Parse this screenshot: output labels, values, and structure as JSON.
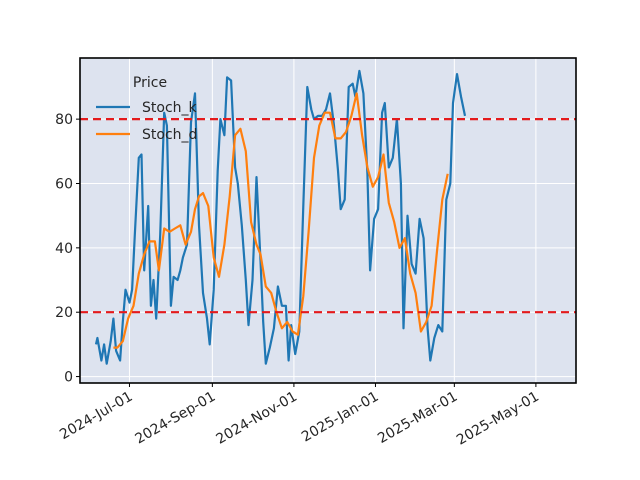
{
  "chart_data": {
    "type": "line",
    "title": "",
    "xlabel": "",
    "ylabel": "",
    "legend": {
      "title": "Price",
      "placement": "top-left"
    },
    "x_ticks": [
      "2024-Jul-01",
      "2024-Sep-01",
      "2024-Nov-01",
      "2025-Jan-01",
      "2025-Mar-01",
      "2025-May-01"
    ],
    "x_range": [
      "2024-05-25",
      "2025-05-31"
    ],
    "ylim": [
      -2,
      99
    ],
    "y_ticks": [
      0,
      20,
      40,
      60,
      80
    ],
    "grid": true,
    "background": "#dde3ef",
    "reference_lines": [
      {
        "y": 80,
        "color": "#e41a1c",
        "style": "dashed"
      },
      {
        "y": 20,
        "color": "#e41a1c",
        "style": "dashed"
      }
    ],
    "series": [
      {
        "name": "Stoch_k",
        "color": "#1f77b4",
        "points": [
          [
            "2024-06-06",
            10
          ],
          [
            "2024-06-07",
            12
          ],
          [
            "2024-06-10",
            5
          ],
          [
            "2024-06-12",
            10
          ],
          [
            "2024-06-14",
            4
          ],
          [
            "2024-06-17",
            11
          ],
          [
            "2024-06-19",
            18
          ],
          [
            "2024-06-21",
            8
          ],
          [
            "2024-06-24",
            5
          ],
          [
            "2024-06-26",
            17
          ],
          [
            "2024-06-28",
            27
          ],
          [
            "2024-07-01",
            23
          ],
          [
            "2024-07-03",
            27
          ],
          [
            "2024-07-05",
            44
          ],
          [
            "2024-07-08",
            68
          ],
          [
            "2024-07-10",
            69
          ],
          [
            "2024-07-12",
            33
          ],
          [
            "2024-07-15",
            53
          ],
          [
            "2024-07-17",
            22
          ],
          [
            "2024-07-19",
            30
          ],
          [
            "2024-07-21",
            18
          ],
          [
            "2024-07-24",
            44
          ],
          [
            "2024-07-27",
            82
          ],
          [
            "2024-07-29",
            78
          ],
          [
            "2024-08-01",
            22
          ],
          [
            "2024-08-03",
            31
          ],
          [
            "2024-08-06",
            30
          ],
          [
            "2024-08-08",
            33
          ],
          [
            "2024-08-10",
            37
          ],
          [
            "2024-08-13",
            41
          ],
          [
            "2024-08-16",
            79
          ],
          [
            "2024-08-19",
            88
          ],
          [
            "2024-08-22",
            47
          ],
          [
            "2024-08-25",
            26
          ],
          [
            "2024-08-28",
            18
          ],
          [
            "2024-08-30",
            10
          ],
          [
            "2024-09-02",
            27
          ],
          [
            "2024-09-05",
            64
          ],
          [
            "2024-09-07",
            80
          ],
          [
            "2024-09-10",
            75
          ],
          [
            "2024-09-12",
            93
          ],
          [
            "2024-09-15",
            92
          ],
          [
            "2024-09-18",
            65
          ],
          [
            "2024-09-20",
            60
          ],
          [
            "2024-09-23",
            47
          ],
          [
            "2024-09-26",
            30
          ],
          [
            "2024-09-28",
            16
          ],
          [
            "2024-10-01",
            30
          ],
          [
            "2024-10-04",
            62
          ],
          [
            "2024-10-07",
            36
          ],
          [
            "2024-10-09",
            17
          ],
          [
            "2024-10-11",
            4
          ],
          [
            "2024-10-14",
            9
          ],
          [
            "2024-10-17",
            15
          ],
          [
            "2024-10-20",
            28
          ],
          [
            "2024-10-23",
            22
          ],
          [
            "2024-10-26",
            22
          ],
          [
            "2024-10-28",
            5
          ],
          [
            "2024-10-30",
            16
          ],
          [
            "2024-11-02",
            7
          ],
          [
            "2024-11-05",
            14
          ],
          [
            "2024-11-08",
            53
          ],
          [
            "2024-11-11",
            90
          ],
          [
            "2024-11-14",
            83
          ],
          [
            "2024-11-16",
            80
          ],
          [
            "2024-11-19",
            81
          ],
          [
            "2024-11-22",
            81
          ],
          [
            "2024-11-25",
            83
          ],
          [
            "2024-11-28",
            88
          ],
          [
            "2024-12-01",
            78
          ],
          [
            "2024-12-04",
            64
          ],
          [
            "2024-12-06",
            52
          ],
          [
            "2024-12-09",
            55
          ],
          [
            "2024-12-12",
            90
          ],
          [
            "2024-12-15",
            91
          ],
          [
            "2024-12-17",
            87
          ],
          [
            "2024-12-20",
            95
          ],
          [
            "2024-12-23",
            88
          ],
          [
            "2024-12-26",
            63
          ],
          [
            "2024-12-28",
            33
          ],
          [
            "2024-12-31",
            49
          ],
          [
            "2025-01-03",
            52
          ],
          [
            "2025-01-06",
            82
          ],
          [
            "2025-01-08",
            85
          ],
          [
            "2025-01-11",
            65
          ],
          [
            "2025-01-14",
            68
          ],
          [
            "2025-01-17",
            80
          ],
          [
            "2025-01-20",
            60
          ],
          [
            "2025-01-22",
            15
          ],
          [
            "2025-01-25",
            50
          ],
          [
            "2025-01-28",
            35
          ],
          [
            "2025-01-31",
            32
          ],
          [
            "2025-02-03",
            49
          ],
          [
            "2025-02-06",
            43
          ],
          [
            "2025-02-09",
            15
          ],
          [
            "2025-02-11",
            5
          ],
          [
            "2025-02-14",
            12
          ],
          [
            "2025-02-17",
            16
          ],
          [
            "2025-02-20",
            14
          ],
          [
            "2025-02-23",
            55
          ],
          [
            "2025-02-26",
            60
          ],
          [
            "2025-02-28",
            85
          ],
          [
            "2025-03-03",
            94
          ],
          [
            "2025-03-06",
            87
          ],
          [
            "2025-03-09",
            81
          ]
        ]
      },
      {
        "name": "Stoch_d",
        "color": "#ff7f0e",
        "points": [
          [
            "2024-06-19",
            9
          ],
          [
            "2024-06-22",
            9
          ],
          [
            "2024-06-26",
            11
          ],
          [
            "2024-06-30",
            18
          ],
          [
            "2024-07-04",
            22
          ],
          [
            "2024-07-08",
            32
          ],
          [
            "2024-07-12",
            38
          ],
          [
            "2024-07-16",
            42
          ],
          [
            "2024-07-20",
            42
          ],
          [
            "2024-07-23",
            33
          ],
          [
            "2024-07-27",
            46
          ],
          [
            "2024-07-31",
            45
          ],
          [
            "2024-08-04",
            46
          ],
          [
            "2024-08-08",
            47
          ],
          [
            "2024-08-12",
            41
          ],
          [
            "2024-08-16",
            45
          ],
          [
            "2024-08-19",
            52
          ],
          [
            "2024-08-22",
            56
          ],
          [
            "2024-08-25",
            57
          ],
          [
            "2024-08-29",
            53
          ],
          [
            "2024-09-02",
            37
          ],
          [
            "2024-09-06",
            31
          ],
          [
            "2024-09-10",
            41
          ],
          [
            "2024-09-14",
            56
          ],
          [
            "2024-09-18",
            75
          ],
          [
            "2024-09-22",
            77
          ],
          [
            "2024-09-26",
            70
          ],
          [
            "2024-09-30",
            48
          ],
          [
            "2024-10-04",
            41
          ],
          [
            "2024-10-07",
            38
          ],
          [
            "2024-10-11",
            28
          ],
          [
            "2024-10-15",
            26
          ],
          [
            "2024-10-19",
            20
          ],
          [
            "2024-10-23",
            15
          ],
          [
            "2024-10-27",
            17
          ],
          [
            "2024-10-31",
            14
          ],
          [
            "2024-11-04",
            13
          ],
          [
            "2024-11-08",
            25
          ],
          [
            "2024-11-12",
            45
          ],
          [
            "2024-11-16",
            68
          ],
          [
            "2024-11-20",
            78
          ],
          [
            "2024-11-24",
            82
          ],
          [
            "2024-11-28",
            82
          ],
          [
            "2024-12-02",
            74
          ],
          [
            "2024-12-06",
            74
          ],
          [
            "2024-12-10",
            76
          ],
          [
            "2024-12-14",
            81
          ],
          [
            "2024-12-18",
            88
          ],
          [
            "2024-12-22",
            75
          ],
          [
            "2024-12-26",
            65
          ],
          [
            "2024-12-30",
            59
          ],
          [
            "2025-01-03",
            62
          ],
          [
            "2025-01-07",
            69
          ],
          [
            "2025-01-11",
            54
          ],
          [
            "2025-01-15",
            48
          ],
          [
            "2025-01-19",
            40
          ],
          [
            "2025-01-23",
            43
          ],
          [
            "2025-01-27",
            32
          ],
          [
            "2025-01-31",
            26
          ],
          [
            "2025-02-04",
            14
          ],
          [
            "2025-02-08",
            17
          ],
          [
            "2025-02-12",
            22
          ],
          [
            "2025-02-16",
            39
          ],
          [
            "2025-02-20",
            55
          ],
          [
            "2025-02-24",
            63
          ]
        ]
      }
    ]
  }
}
